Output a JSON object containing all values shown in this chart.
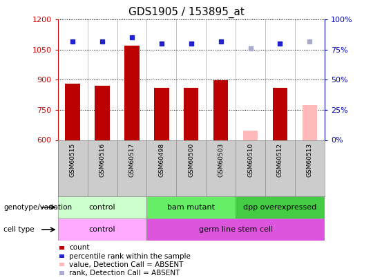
{
  "title": "GDS1905 / 153895_at",
  "samples": [
    "GSM60515",
    "GSM60516",
    "GSM60517",
    "GSM60498",
    "GSM60500",
    "GSM60503",
    "GSM60510",
    "GSM60512",
    "GSM60513"
  ],
  "counts": [
    880,
    872,
    1070,
    860,
    860,
    898,
    null,
    860,
    null
  ],
  "counts_absent": [
    null,
    null,
    null,
    null,
    null,
    null,
    648,
    null,
    775
  ],
  "ranks": [
    82,
    82,
    85,
    80,
    80,
    82,
    null,
    80,
    null
  ],
  "ranks_absent": [
    null,
    null,
    null,
    null,
    null,
    null,
    76,
    null,
    82
  ],
  "ylim_left": [
    600,
    1200
  ],
  "ylim_right": [
    0,
    100
  ],
  "yticks_left": [
    600,
    750,
    900,
    1050,
    1200
  ],
  "yticks_right": [
    0,
    25,
    50,
    75,
    100
  ],
  "bar_color": "#bb0000",
  "bar_color_absent": "#ffbbbb",
  "rank_color": "#2222cc",
  "rank_color_absent": "#aaaacc",
  "axis_color_left": "#cc0000",
  "axis_color_right": "#0000bb",
  "bg_color": "#ffffff",
  "sample_strip_color": "#cccccc",
  "genotype_groups": [
    {
      "label": "control",
      "start": 0,
      "end": 3,
      "color": "#ccffcc"
    },
    {
      "label": "bam mutant",
      "start": 3,
      "end": 6,
      "color": "#66ee66"
    },
    {
      "label": "dpp overexpressed",
      "start": 6,
      "end": 9,
      "color": "#44cc44"
    }
  ],
  "celltype_groups": [
    {
      "label": "control",
      "start": 0,
      "end": 3,
      "color": "#ffaaff"
    },
    {
      "label": "germ line stem cell",
      "start": 3,
      "end": 9,
      "color": "#dd55dd"
    }
  ],
  "legend_items": [
    {
      "label": "count",
      "color": "#bb0000"
    },
    {
      "label": "percentile rank within the sample",
      "color": "#2222cc"
    },
    {
      "label": "value, Detection Call = ABSENT",
      "color": "#ffbbbb"
    },
    {
      "label": "rank, Detection Call = ABSENT",
      "color": "#aaaacc"
    }
  ]
}
